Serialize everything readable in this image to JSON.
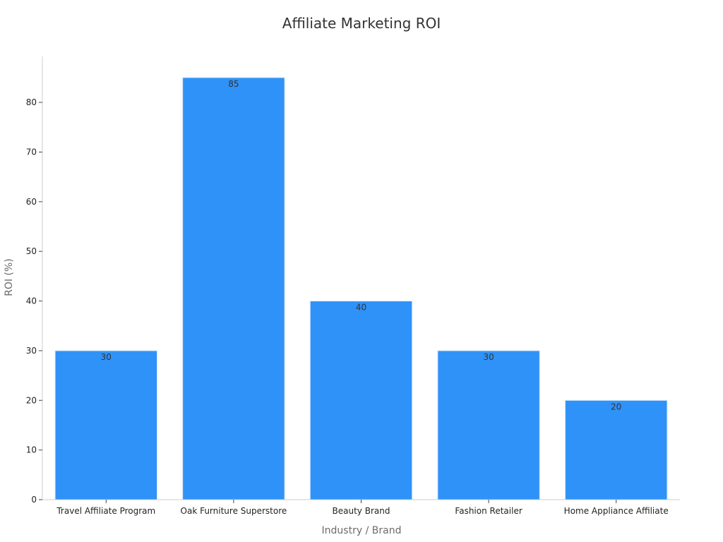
{
  "chart_data": {
    "type": "bar",
    "title": "Affiliate Marketing ROI",
    "xlabel": "Industry / Brand",
    "ylabel": "ROI (%)",
    "categories": [
      "Travel Affiliate Program",
      "Oak Furniture Superstore",
      "Beauty Brand",
      "Fashion Retailer",
      "Home Appliance Affiliate"
    ],
    "values": [
      30,
      85,
      40,
      30,
      20
    ],
    "ylim": [
      0,
      89.25
    ],
    "yticks": [
      0,
      10,
      20,
      30,
      40,
      50,
      60,
      70,
      80
    ],
    "grid": false,
    "bar_color": "#2f92f8",
    "bar_edge_color": "#d7e9fb"
  }
}
